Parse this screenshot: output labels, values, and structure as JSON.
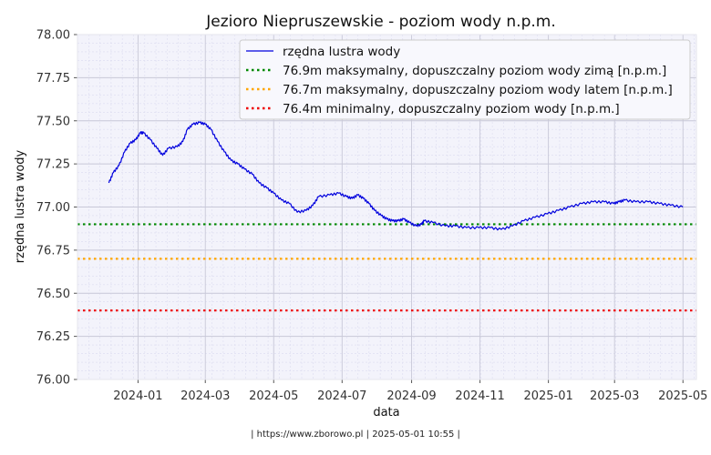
{
  "chart_data": {
    "type": "line",
    "title": "Jezioro Niepruszewskie - poziom wody n.p.m.",
    "xlabel": "data",
    "ylabel": "rzędna lustra wody",
    "ylim": [
      76.0,
      78.0
    ],
    "xlim": [
      "2023-11-08",
      "2025-05-13"
    ],
    "y_ticks": [
      "76.00",
      "76.25",
      "76.50",
      "76.75",
      "77.00",
      "77.25",
      "77.50",
      "77.75",
      "78.00"
    ],
    "x_ticks": [
      {
        "date": "2024-01-01",
        "label": "2024-01"
      },
      {
        "date": "2024-03-01",
        "label": "2024-03"
      },
      {
        "date": "2024-05-01",
        "label": "2024-05"
      },
      {
        "date": "2024-07-01",
        "label": "2024-07"
      },
      {
        "date": "2024-09-01",
        "label": "2024-09"
      },
      {
        "date": "2024-11-01",
        "label": "2024-11"
      },
      {
        "date": "2025-01-01",
        "label": "2025-01"
      },
      {
        "date": "2025-03-01",
        "label": "2025-03"
      },
      {
        "date": "2025-05-01",
        "label": "2025-05"
      }
    ],
    "grid": true,
    "legend_position": "top-right",
    "series": [
      {
        "name": "rzędna lustra wody",
        "color": "#0000dd",
        "points": [
          [
            "2023-12-06",
            77.14
          ],
          [
            "2023-12-10",
            77.2
          ],
          [
            "2023-12-15",
            77.24
          ],
          [
            "2023-12-20",
            77.32
          ],
          [
            "2023-12-25",
            77.37
          ],
          [
            "2023-12-30",
            77.39
          ],
          [
            "2024-01-03",
            77.43
          ],
          [
            "2024-01-06",
            77.43
          ],
          [
            "2024-01-12",
            77.39
          ],
          [
            "2024-01-18",
            77.34
          ],
          [
            "2024-01-23",
            77.3
          ],
          [
            "2024-01-28",
            77.34
          ],
          [
            "2024-02-05",
            77.35
          ],
          [
            "2024-02-10",
            77.38
          ],
          [
            "2024-02-14",
            77.45
          ],
          [
            "2024-02-19",
            77.48
          ],
          [
            "2024-02-25",
            77.49
          ],
          [
            "2024-03-01",
            77.48
          ],
          [
            "2024-03-06",
            77.45
          ],
          [
            "2024-03-12",
            77.38
          ],
          [
            "2024-03-18",
            77.32
          ],
          [
            "2024-03-24",
            77.27
          ],
          [
            "2024-03-30",
            77.25
          ],
          [
            "2024-04-05",
            77.22
          ],
          [
            "2024-04-12",
            77.19
          ],
          [
            "2024-04-18",
            77.14
          ],
          [
            "2024-04-25",
            77.11
          ],
          [
            "2024-05-01",
            77.08
          ],
          [
            "2024-05-08",
            77.04
          ],
          [
            "2024-05-15",
            77.02
          ],
          [
            "2024-05-22",
            76.97
          ],
          [
            "2024-05-30",
            76.98
          ],
          [
            "2024-06-05",
            77.01
          ],
          [
            "2024-06-10",
            77.06
          ],
          [
            "2024-06-20",
            77.07
          ],
          [
            "2024-06-28",
            77.08
          ],
          [
            "2024-07-05",
            77.06
          ],
          [
            "2024-07-10",
            77.05
          ],
          [
            "2024-07-15",
            77.07
          ],
          [
            "2024-07-20",
            77.05
          ],
          [
            "2024-07-25",
            77.02
          ],
          [
            "2024-07-30",
            76.98
          ],
          [
            "2024-08-05",
            76.95
          ],
          [
            "2024-08-10",
            76.93
          ],
          [
            "2024-08-15",
            76.92
          ],
          [
            "2024-08-20",
            76.92
          ],
          [
            "2024-08-25",
            76.93
          ],
          [
            "2024-08-30",
            76.91
          ],
          [
            "2024-09-05",
            76.89
          ],
          [
            "2024-09-10",
            76.9
          ],
          [
            "2024-09-12",
            76.92
          ],
          [
            "2024-09-20",
            76.91
          ],
          [
            "2024-10-01",
            76.89
          ],
          [
            "2024-10-10",
            76.89
          ],
          [
            "2024-10-20",
            76.88
          ],
          [
            "2024-10-31",
            76.88
          ],
          [
            "2024-11-10",
            76.88
          ],
          [
            "2024-11-20",
            76.87
          ],
          [
            "2024-11-30",
            76.89
          ],
          [
            "2024-12-10",
            76.92
          ],
          [
            "2024-12-20",
            76.94
          ],
          [
            "2024-12-31",
            76.96
          ],
          [
            "2025-01-10",
            76.98
          ],
          [
            "2025-01-20",
            77.0
          ],
          [
            "2025-01-31",
            77.02
          ],
          [
            "2025-02-10",
            77.03
          ],
          [
            "2025-02-20",
            77.03
          ],
          [
            "2025-02-28",
            77.02
          ],
          [
            "2025-03-05",
            77.03
          ],
          [
            "2025-03-10",
            77.04
          ],
          [
            "2025-03-20",
            77.03
          ],
          [
            "2025-03-31",
            77.03
          ],
          [
            "2025-04-10",
            77.02
          ],
          [
            "2025-04-20",
            77.01
          ],
          [
            "2025-05-01",
            77.0
          ]
        ]
      }
    ],
    "reference_lines": [
      {
        "name": "76.9m maksymalny, dopuszczalny poziom wody zimą [n.p.m.]",
        "value": 76.9,
        "color": "#008800"
      },
      {
        "name": "76.7m maksymalny, dopuszczalny poziom wody latem [n.p.m.]",
        "value": 76.7,
        "color": "#ffa500"
      },
      {
        "name": "76.4m minimalny, dopuszczalny poziom wody [n.p.m.]",
        "value": 76.4,
        "color": "#ee0000"
      }
    ]
  },
  "footer": {
    "text": "|  https://www.zborowo.pl   |   2025-05-01 10:55  |"
  }
}
